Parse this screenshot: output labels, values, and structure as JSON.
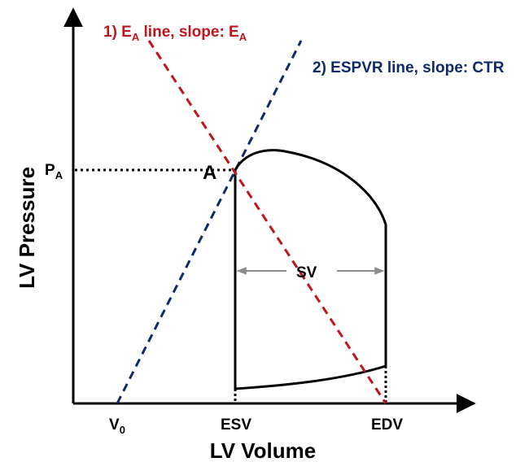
{
  "labels": {
    "ea_line": {
      "prefix": "1) E",
      "sub": "A",
      "mid": " line, slope: E",
      "sub2": "A"
    },
    "espvr_line": "2) ESPVR line, slope: CTR",
    "pa": {
      "main": "P",
      "sub": "A"
    },
    "point_a": "A",
    "sv": "SV",
    "v0": {
      "main": "V",
      "sub": "0"
    },
    "esv": "ESV",
    "edv": "EDV",
    "y_axis": "LV Pressure",
    "x_axis": "LV Volume"
  },
  "colors": {
    "ea_line": "#c0141c",
    "espvr_line": "#0e2a6b",
    "axis": "#000000",
    "loop": "#000000",
    "sv_arrow": "#8c8c8c"
  }
}
